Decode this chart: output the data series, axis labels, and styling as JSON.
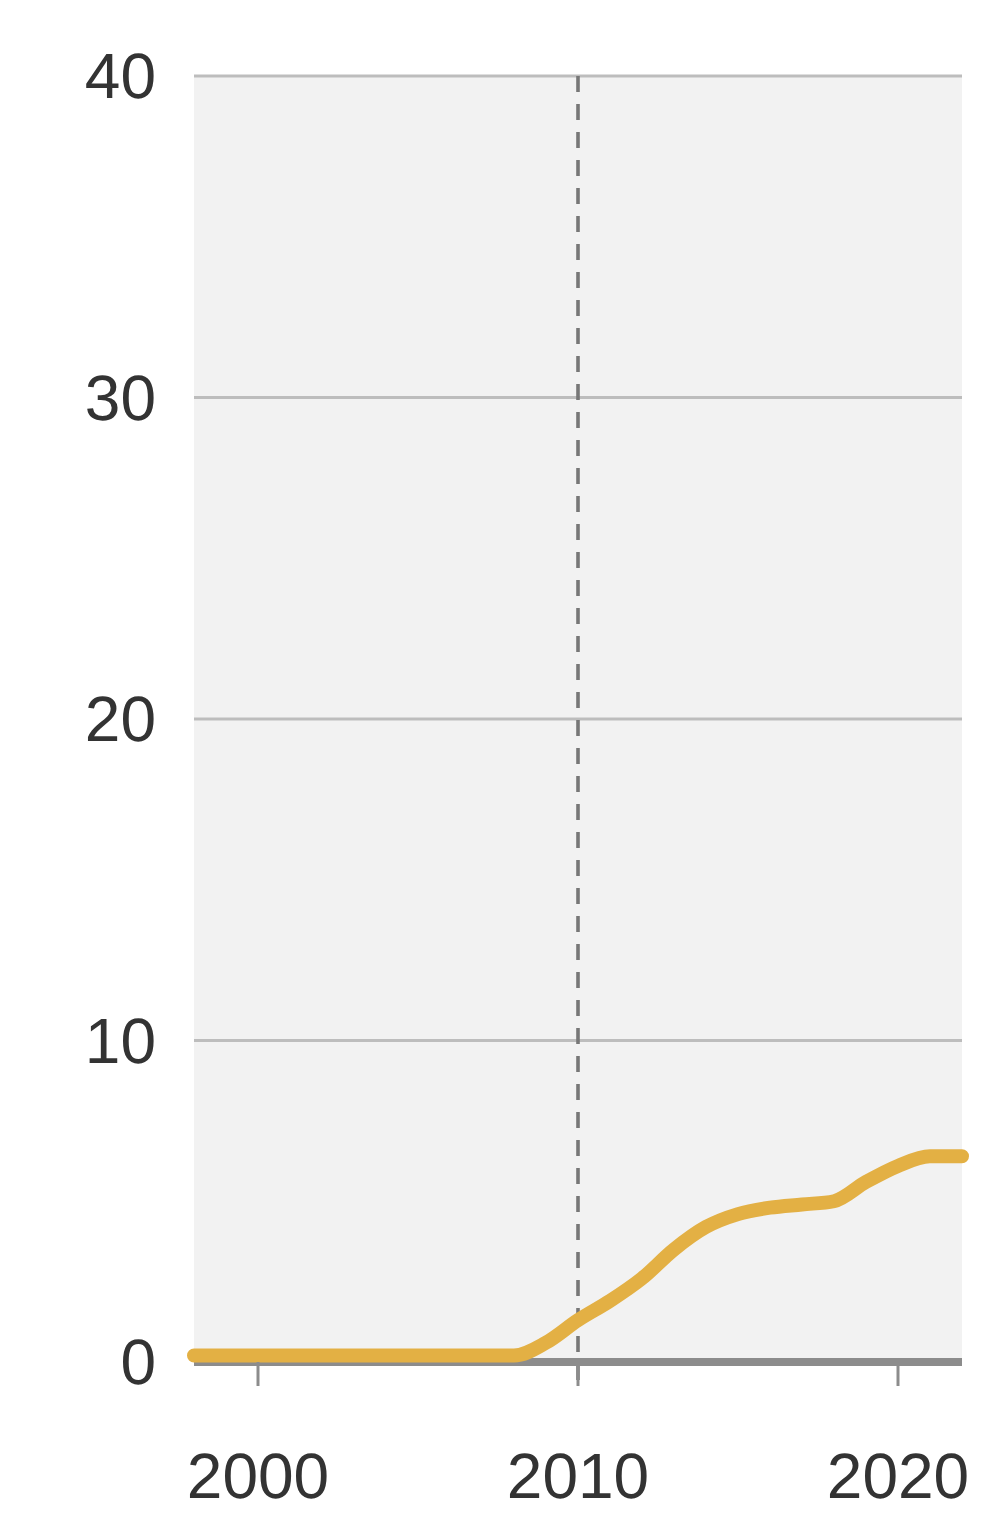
{
  "chart_data": {
    "type": "line",
    "x": [
      1998,
      2000,
      2002,
      2004,
      2006,
      2008,
      2009,
      2010,
      2011,
      2012,
      2013,
      2014,
      2015,
      2016,
      2017,
      2018,
      2019,
      2020,
      2021,
      2022
    ],
    "series": [
      {
        "color": "#e3b044",
        "values": [
          0.2,
          0.2,
          0.2,
          0.2,
          0.2,
          0.2,
          0.6,
          1.3,
          1.9,
          2.6,
          3.5,
          4.2,
          4.6,
          4.8,
          4.9,
          5.0,
          5.6,
          6.1,
          6.4,
          6.4
        ]
      }
    ],
    "xlim": [
      1998,
      2022
    ],
    "xticks": [
      2000,
      2010,
      2020
    ],
    "ylim": [
      0,
      40
    ],
    "yticks": [
      0,
      10,
      20,
      30,
      40
    ],
    "grid": "y",
    "marker": "none",
    "line_style": "solid",
    "ref_lines": [
      {
        "axis": "x",
        "value": 2010,
        "line_style": "dashed",
        "color": "#777777"
      }
    ]
  }
}
